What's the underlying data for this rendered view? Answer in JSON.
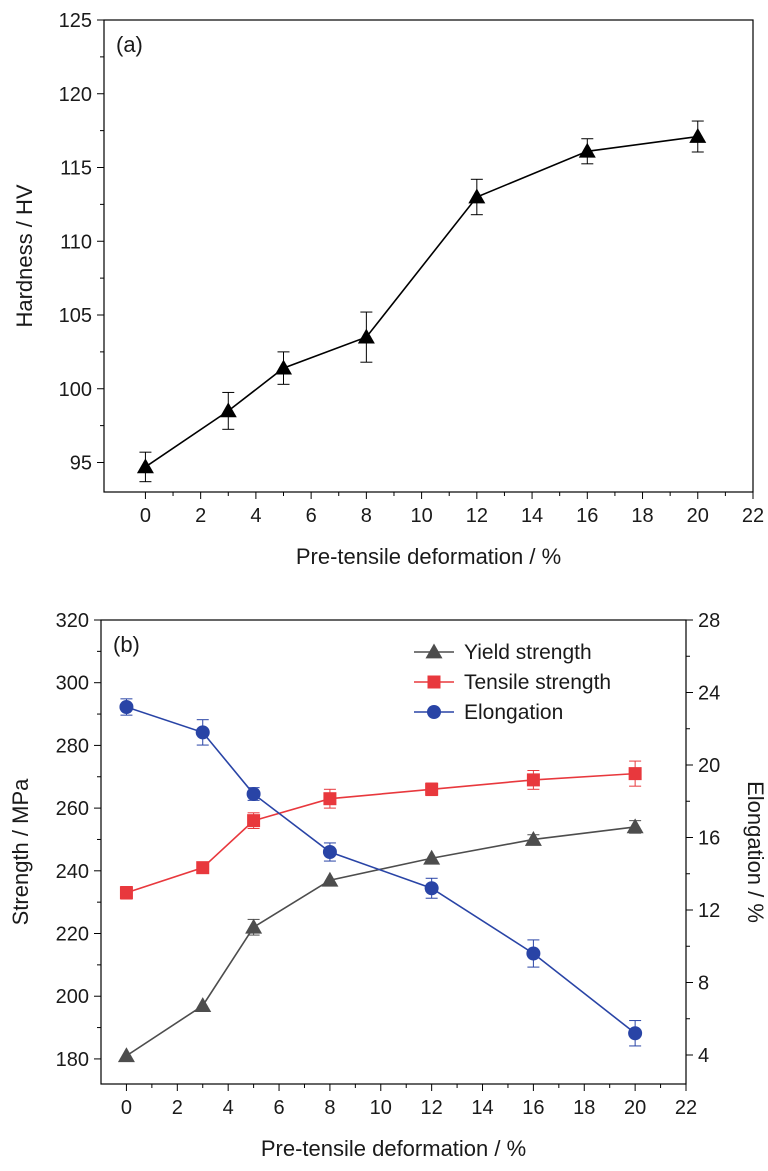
{
  "chart_data": [
    {
      "type": "line",
      "panel_label": "(a)",
      "xlabel": "Pre-tensile deformation / %",
      "ylabel": "Hardness / HV",
      "xlim": [
        -1.5,
        22
      ],
      "ylim": [
        93,
        125
      ],
      "xticks": [
        "0",
        "2",
        "4",
        "6",
        "8",
        "10",
        "12",
        "14",
        "16",
        "18",
        "20",
        "22"
      ],
      "yticks": [
        "95",
        "100",
        "105",
        "110",
        "115",
        "120",
        "125"
      ],
      "x": [
        0,
        3,
        5,
        8,
        12,
        16,
        20
      ],
      "series": [
        {
          "marker": "triangle",
          "color": "#000000",
          "values": [
            94.7,
            98.5,
            101.4,
            103.5,
            113.0,
            116.1,
            117.1
          ],
          "error": [
            1.0,
            1.25,
            1.1,
            1.7,
            1.2,
            0.85,
            1.05
          ]
        }
      ]
    },
    {
      "type": "line",
      "panel_label": "(b)",
      "xlabel": "Pre-tensile deformation / %",
      "ylabel": "Strength / MPa",
      "y2label": "Elongation / %",
      "xlim": [
        -1,
        22
      ],
      "ylim": [
        172,
        320
      ],
      "y2lim": [
        2.4,
        28
      ],
      "xticks": [
        "0",
        "2",
        "4",
        "6",
        "8",
        "10",
        "12",
        "14",
        "16",
        "18",
        "20",
        "22"
      ],
      "yticks": [
        "180",
        "200",
        "220",
        "240",
        "260",
        "280",
        "300",
        "320"
      ],
      "y2ticks": [
        "4",
        "8",
        "12",
        "16",
        "20",
        "24",
        "28"
      ],
      "legend_position": "top-right",
      "x": [
        0,
        3,
        5,
        8,
        12,
        16,
        20
      ],
      "series": [
        {
          "name": "Yield strength",
          "axis": "left",
          "marker": "triangle",
          "color": "#4d4d4d",
          "values": [
            181,
            197,
            222,
            237,
            244,
            250,
            254
          ],
          "error": [
            0,
            0,
            2.5,
            0,
            0,
            1.5,
            2
          ]
        },
        {
          "name": "Tensile strength",
          "axis": "left",
          "marker": "square",
          "color": "#e8383d",
          "values": [
            233,
            241,
            256,
            263,
            266,
            269,
            271
          ],
          "error": [
            2,
            1,
            2.5,
            3,
            2,
            3,
            4
          ]
        },
        {
          "name": "Elongation",
          "axis": "right",
          "marker": "circle",
          "color": "#2944a6",
          "values": [
            23.2,
            21.8,
            18.4,
            15.2,
            13.2,
            9.6,
            5.2
          ],
          "error": [
            0.45,
            0.7,
            0.35,
            0.5,
            0.55,
            0.75,
            0.7
          ]
        }
      ]
    }
  ]
}
